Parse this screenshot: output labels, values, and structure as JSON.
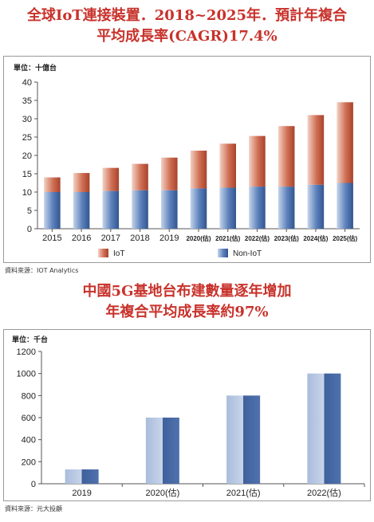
{
  "chart1": {
    "title_line1": "全球IoT連接裝置．2018~2025年．預計年複合",
    "title_line2": "平均成長率(CAGR)17.4%",
    "unit": "單位：十億台",
    "source": "資料來源：IOT Analytics",
    "colors": {
      "iot": "#c8644a",
      "non_iot": "#4a6ea8"
    }
  },
  "chart2": {
    "title_line1": "中國5G基地台布建數量逐年增加",
    "title_line2": "年複合平均成長率約97%",
    "unit": "單位：千台",
    "source": "資料來源：元大投顧",
    "colors": {
      "bar": "#4a6ea8"
    }
  },
  "chart_data": [
    {
      "type": "bar",
      "stacked": true,
      "categories": [
        "2015",
        "2016",
        "2017",
        "2018",
        "2019",
        "2020(估)",
        "2021(估)",
        "2022(估)",
        "2023(估)",
        "2024(估)",
        "2025(估)"
      ],
      "series": [
        {
          "name": "Non-IoT",
          "values": [
            10,
            10,
            10.3,
            10.5,
            10.5,
            11,
            11.2,
            11.5,
            11.5,
            12,
            12.5
          ]
        },
        {
          "name": "IoT",
          "values": [
            4,
            5.2,
            6.3,
            7.2,
            8.9,
            10.3,
            12,
            13.8,
            16.5,
            19,
            22
          ]
        }
      ],
      "ylabel": "單位：十億台",
      "ylim": [
        0,
        40
      ],
      "yticks": [
        0,
        5,
        10,
        15,
        20,
        25,
        30,
        35,
        40
      ],
      "grid": false,
      "legend_position": "bottom"
    },
    {
      "type": "bar",
      "categories": [
        "2019",
        "2020(估)",
        "2021(估)",
        "2022(估)"
      ],
      "values": [
        130,
        600,
        800,
        1000
      ],
      "ylabel": "單位：千台",
      "ylim": [
        0,
        1200
      ],
      "yticks": [
        0,
        200,
        400,
        600,
        800,
        1000,
        1200
      ],
      "grid": false
    }
  ]
}
